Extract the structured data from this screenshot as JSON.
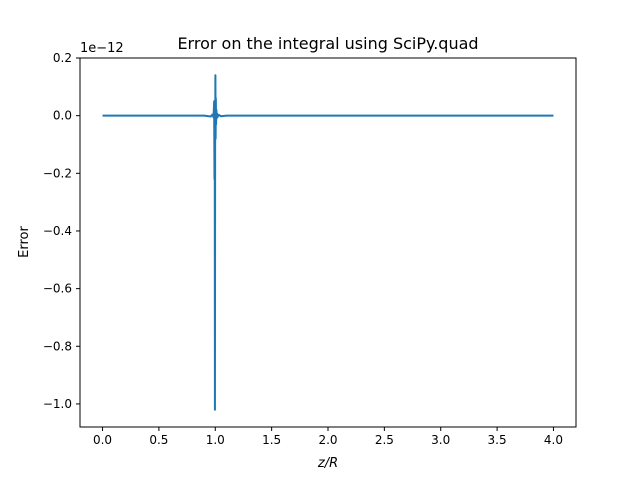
{
  "chart_data": {
    "type": "line",
    "title": "Error on the integral using SciPy.quad",
    "xlabel": "z/R",
    "ylabel": "Error",
    "offset_label": "1e−12",
    "xlim": [
      -0.2,
      4.2
    ],
    "ylim": [
      -1.08,
      0.2
    ],
    "x_ticks": [
      0.0,
      0.5,
      1.0,
      1.5,
      2.0,
      2.5,
      3.0,
      3.5,
      4.0
    ],
    "x_tick_labels": [
      "0.0",
      "0.5",
      "1.0",
      "1.5",
      "2.0",
      "2.5",
      "3.0",
      "3.5",
      "4.0"
    ],
    "y_ticks": [
      0.2,
      0.0,
      -0.2,
      -0.4,
      -0.6,
      -0.8,
      -1.0
    ],
    "y_tick_labels": [
      "0.2",
      "0.0",
      "−0.2",
      "−0.4",
      "−0.6",
      "−0.8",
      "−1.0"
    ],
    "grid": false,
    "color": "#1f77b4",
    "series": [
      {
        "x": [
          0.0,
          0.5,
          0.9,
          0.96,
          0.975,
          0.985,
          0.99,
          0.993,
          0.995,
          0.997,
          0.999,
          1.0,
          1.001,
          1.003,
          1.005,
          1.007,
          1.01,
          1.012,
          1.015,
          1.02,
          1.03,
          1.05,
          1.1,
          1.2,
          1.5,
          2.0,
          3.0,
          4.0
        ],
        "y": [
          0.0,
          0.0,
          0.0,
          -0.003,
          0.004,
          -0.006,
          0.05,
          -0.22,
          0.04,
          -1.02,
          0.03,
          -0.05,
          0.14,
          -0.08,
          0.06,
          -0.03,
          0.02,
          -0.01,
          0.008,
          -0.005,
          0.003,
          -0.002,
          0.0,
          0.0,
          0.0,
          0.0,
          0.0,
          0.0
        ]
      }
    ]
  }
}
